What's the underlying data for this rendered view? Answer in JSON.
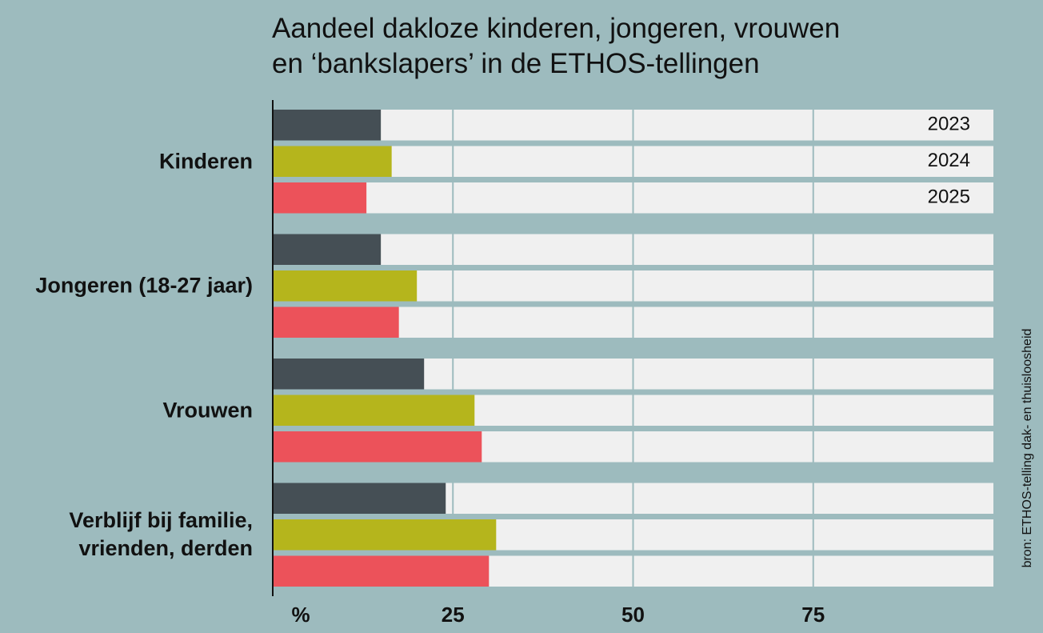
{
  "chart_data": {
    "type": "hbar",
    "title": [
      "Aandeel dakloze kinderen, jongeren, vrouwen",
      "en ‘bankslapers’ in de ETHOS-tellingen"
    ],
    "categories": [
      "Kinderen",
      "Jongeren (18-27 jaar)",
      "Vrouwen",
      "Verblijf bij familie, vrienden, derden"
    ],
    "series": [
      {
        "name": "2023",
        "color": "#454f55",
        "values": [
          15,
          15,
          21,
          24
        ]
      },
      {
        "name": "2024",
        "color": "#b5b51c",
        "values": [
          16.5,
          20,
          28,
          31
        ]
      },
      {
        "name": "2025",
        "color": "#ec525a",
        "values": [
          13,
          17.5,
          29,
          30
        ]
      }
    ],
    "xlabel": "%",
    "xlim": [
      0,
      100
    ],
    "xticks": [
      25,
      50,
      75
    ],
    "grid": true,
    "source": "bron: ETHOS-telling dak- en thuisloosheid"
  }
}
